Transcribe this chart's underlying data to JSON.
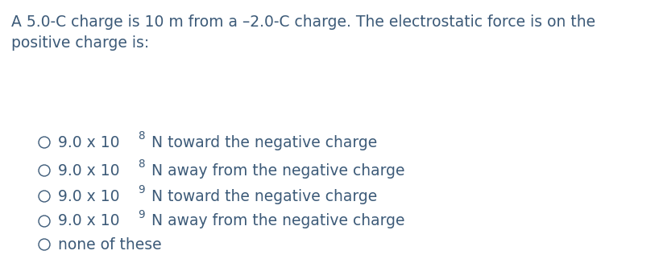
{
  "background_color": "#ffffff",
  "text_color": "#3c5a78",
  "question_line1": "A 5.0-C charge is 10 m from a –2.0-C charge. The electrostatic force is on the",
  "question_line2": "positive charge is:",
  "options": [
    {
      "prefix": "9.0 x 10",
      "exp": "8",
      "suffix": " N toward the negative charge"
    },
    {
      "prefix": "9.0 x 10",
      "exp": "8",
      "suffix": " N away from the negative charge"
    },
    {
      "prefix": "9.0 x 10",
      "exp": "9",
      "suffix": " N toward the negative charge"
    },
    {
      "prefix": "9.0 x 10",
      "exp": "9",
      "suffix": " N away from the negative charge"
    },
    {
      "prefix": "none of these",
      "exp": "",
      "suffix": ""
    }
  ],
  "question_fontsize": 13.5,
  "option_fontsize": 13.5,
  "figsize": [
    8.23,
    3.22
  ],
  "dpi": 100
}
